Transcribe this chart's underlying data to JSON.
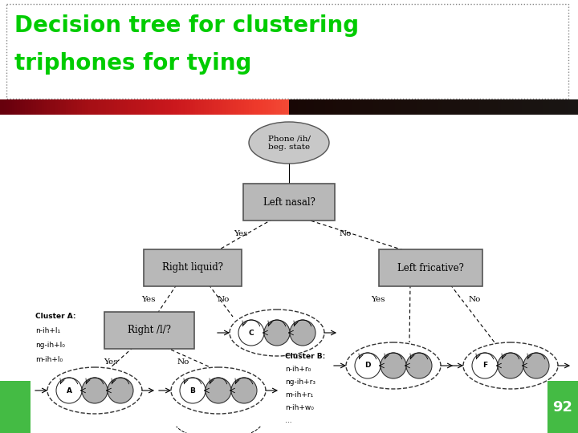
{
  "title_line1": "Decision tree for clustering",
  "title_line2": "triphones for tying",
  "title_color": "#00cc00",
  "title_fontsize": 20,
  "bg_color": "#ffffff",
  "number": "92",
  "number_bg": "#44bb44",
  "node_box_color": "#b8b8b8",
  "node_box_edge": "#555555",
  "ellipse_color": "#c8c8c8",
  "ellipse_edge": "#555555",
  "cluster_labels_A": [
    "Cluster A:",
    "n-ih+l₁",
    "ng-ih+l₀",
    "m-ih+l₀"
  ],
  "cluster_labels_B": [
    "Cluster B:",
    "n-ih+r₀",
    "ng-ih+r₃",
    "m-ih+r₁",
    "n-ih+w₀",
    "..."
  ]
}
